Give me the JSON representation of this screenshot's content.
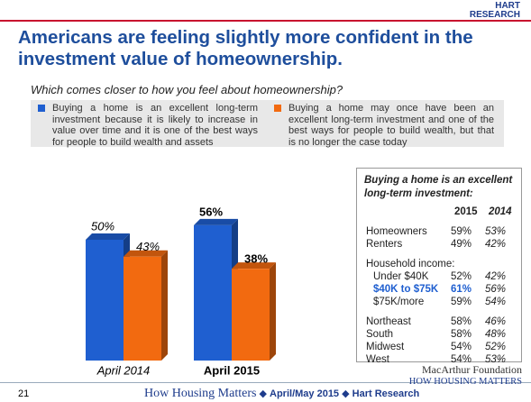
{
  "logo": {
    "line1": "HART",
    "line2": "RESEARCH"
  },
  "chart_data": {
    "type": "bar",
    "title": "Americans are feeling slightly more confident in the investment value of homeownership.",
    "subtitle": "Which comes closer to how you feel about homeownership?",
    "categories": [
      "April 2014",
      "April 2015"
    ],
    "series": [
      {
        "name": "Buying a home is an excellent long-term investment because it is likely to increase in value over time and it is one of the best ways for people to build wealth and assets",
        "color": "#1f5fd0",
        "values": [
          50,
          56
        ],
        "value_labels": [
          "50%",
          "56%"
        ]
      },
      {
        "name": "Buying a home may once have been an excellent long-term investment and one of the best ways for people to build wealth, but that is no longer the case today",
        "color": "#f26a10",
        "values": [
          43,
          38
        ],
        "value_labels": [
          "43%",
          "38%"
        ]
      }
    ]
  },
  "table": {
    "title": "Buying a home is an excellent long-term investment:",
    "columns": [
      "2015",
      "2014"
    ],
    "groups": [
      {
        "rows": [
          {
            "label": "Homeowners",
            "cells": [
              "59%",
              "53%"
            ]
          },
          {
            "label": "Renters",
            "cells": [
              "49%",
              "42%"
            ]
          }
        ]
      },
      {
        "heading": "Household income:",
        "rows": [
          {
            "label": "Under $40K",
            "cells": [
              "52%",
              "42%"
            ]
          },
          {
            "label": "$40K to $75K",
            "cells": [
              "61%",
              "56%"
            ],
            "highlight": true
          },
          {
            "label": "$75K/more",
            "cells": [
              "59%",
              "54%"
            ]
          }
        ]
      },
      {
        "rows": [
          {
            "label": "Northeast",
            "cells": [
              "58%",
              "46%"
            ]
          },
          {
            "label": "South",
            "cells": [
              "58%",
              "48%"
            ]
          },
          {
            "label": "Midwest",
            "cells": [
              "54%",
              "52%"
            ]
          },
          {
            "label": "West",
            "cells": [
              "54%",
              "53%"
            ]
          }
        ]
      }
    ]
  },
  "footer": {
    "page": "21",
    "text": "How Housing Matters",
    "date": "April/May 2015",
    "org": "Hart Research",
    "logo_line1": "MacArthur Foundation",
    "logo_line2": "HOW HOUSING MATTERS"
  }
}
